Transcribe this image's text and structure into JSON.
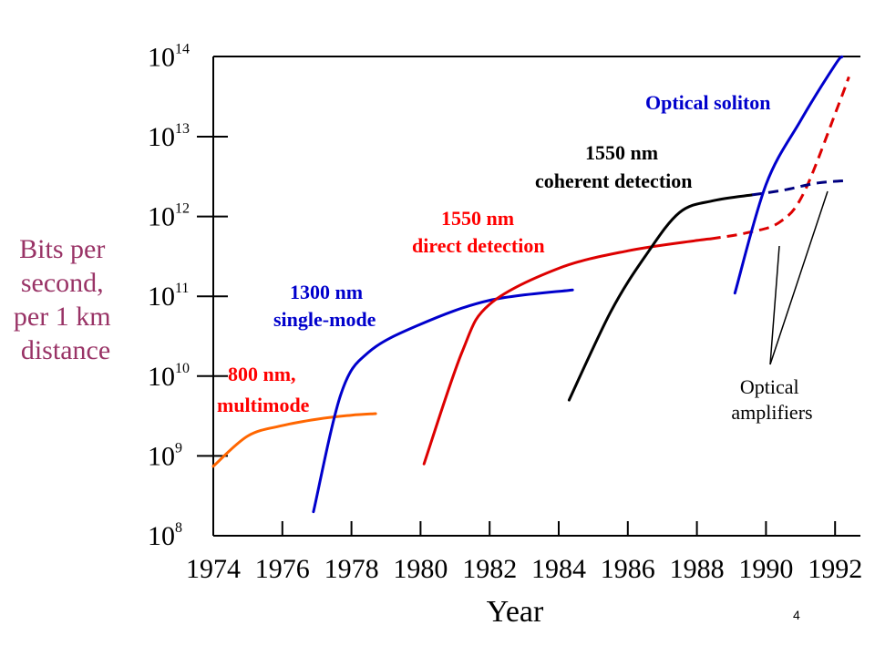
{
  "chart_data": {
    "type": "line",
    "xlabel": "Year",
    "ylabel": [
      "Bits per",
      "second,",
      "per 1 km",
      "distance"
    ],
    "x_ticks": [
      1974,
      1976,
      1978,
      1980,
      1982,
      1984,
      1986,
      1988,
      1990,
      1992
    ],
    "y_tick_exponents": [
      8,
      9,
      10,
      11,
      12,
      13,
      14
    ],
    "y_scale": "log",
    "xlim": [
      1974,
      1992.8
    ],
    "ylim_exponent": [
      8,
      14
    ],
    "series": [
      {
        "name": [
          "800 nm,",
          "multimode"
        ],
        "color": "#FF6600",
        "style": "solid",
        "points": [
          [
            1974,
            8.87
          ],
          [
            1975,
            9.25
          ],
          [
            1976,
            9.38
          ],
          [
            1977,
            9.46
          ],
          [
            1978,
            9.51
          ],
          [
            1978.7,
            9.53
          ]
        ]
      },
      {
        "name": [
          "1300 nm",
          "single-mode"
        ],
        "color": "#0000CC",
        "style": "solid",
        "points": [
          [
            1976.9,
            8.3
          ],
          [
            1977.7,
            9.78
          ],
          [
            1978.5,
            10.3
          ],
          [
            1980,
            10.65
          ],
          [
            1982,
            10.95
          ],
          [
            1984.4,
            11.08
          ]
        ]
      },
      {
        "name": [
          "1550 nm",
          "direct detection"
        ],
        "color": "#DD0000",
        "style": "solid",
        "points": [
          [
            1980.1,
            8.9
          ],
          [
            1981.2,
            10.3
          ],
          [
            1982,
            10.9
          ],
          [
            1984,
            11.35
          ],
          [
            1986,
            11.57
          ],
          [
            1988,
            11.7
          ],
          [
            1988.4,
            11.72
          ]
        ]
      },
      {
        "name": [
          "1550 nm",
          "direct detection"
        ],
        "color": "#DD0000",
        "style": "dashed",
        "points": [
          [
            1988.4,
            11.72
          ],
          [
            1989.5,
            11.8
          ],
          [
            1990.4,
            11.93
          ],
          [
            1991.1,
            12.3
          ],
          [
            1992.1,
            13.4
          ],
          [
            1992.4,
            13.75
          ]
        ]
      },
      {
        "name": [
          "1550 nm",
          "coherent detection"
        ],
        "color": "#000000",
        "style": "solid",
        "points": [
          [
            1984.3,
            9.7
          ],
          [
            1985.5,
            10.8
          ],
          [
            1986.5,
            11.5
          ],
          [
            1987.5,
            12.05
          ],
          [
            1988.5,
            12.2
          ],
          [
            1989.6,
            12.27
          ]
        ]
      },
      {
        "name": [
          "1550 nm",
          "coherent detection"
        ],
        "color": "#000080",
        "style": "dashed",
        "points": [
          [
            1989.6,
            12.27
          ],
          [
            1990.5,
            12.33
          ],
          [
            1991.5,
            12.42
          ],
          [
            1992.4,
            12.45
          ]
        ]
      },
      {
        "name": [
          "Optical soliton"
        ],
        "color": "#0000CC",
        "style": "solid",
        "points": [
          [
            1989.1,
            11.04
          ],
          [
            1990,
            12.4
          ],
          [
            1991,
            13.2
          ],
          [
            1992,
            13.9
          ],
          [
            1992.2,
            14.0
          ]
        ]
      }
    ],
    "annotations": [
      {
        "text": [
          "Optical",
          "amplifiers"
        ],
        "color": "#000000"
      }
    ]
  },
  "page_number": "4"
}
